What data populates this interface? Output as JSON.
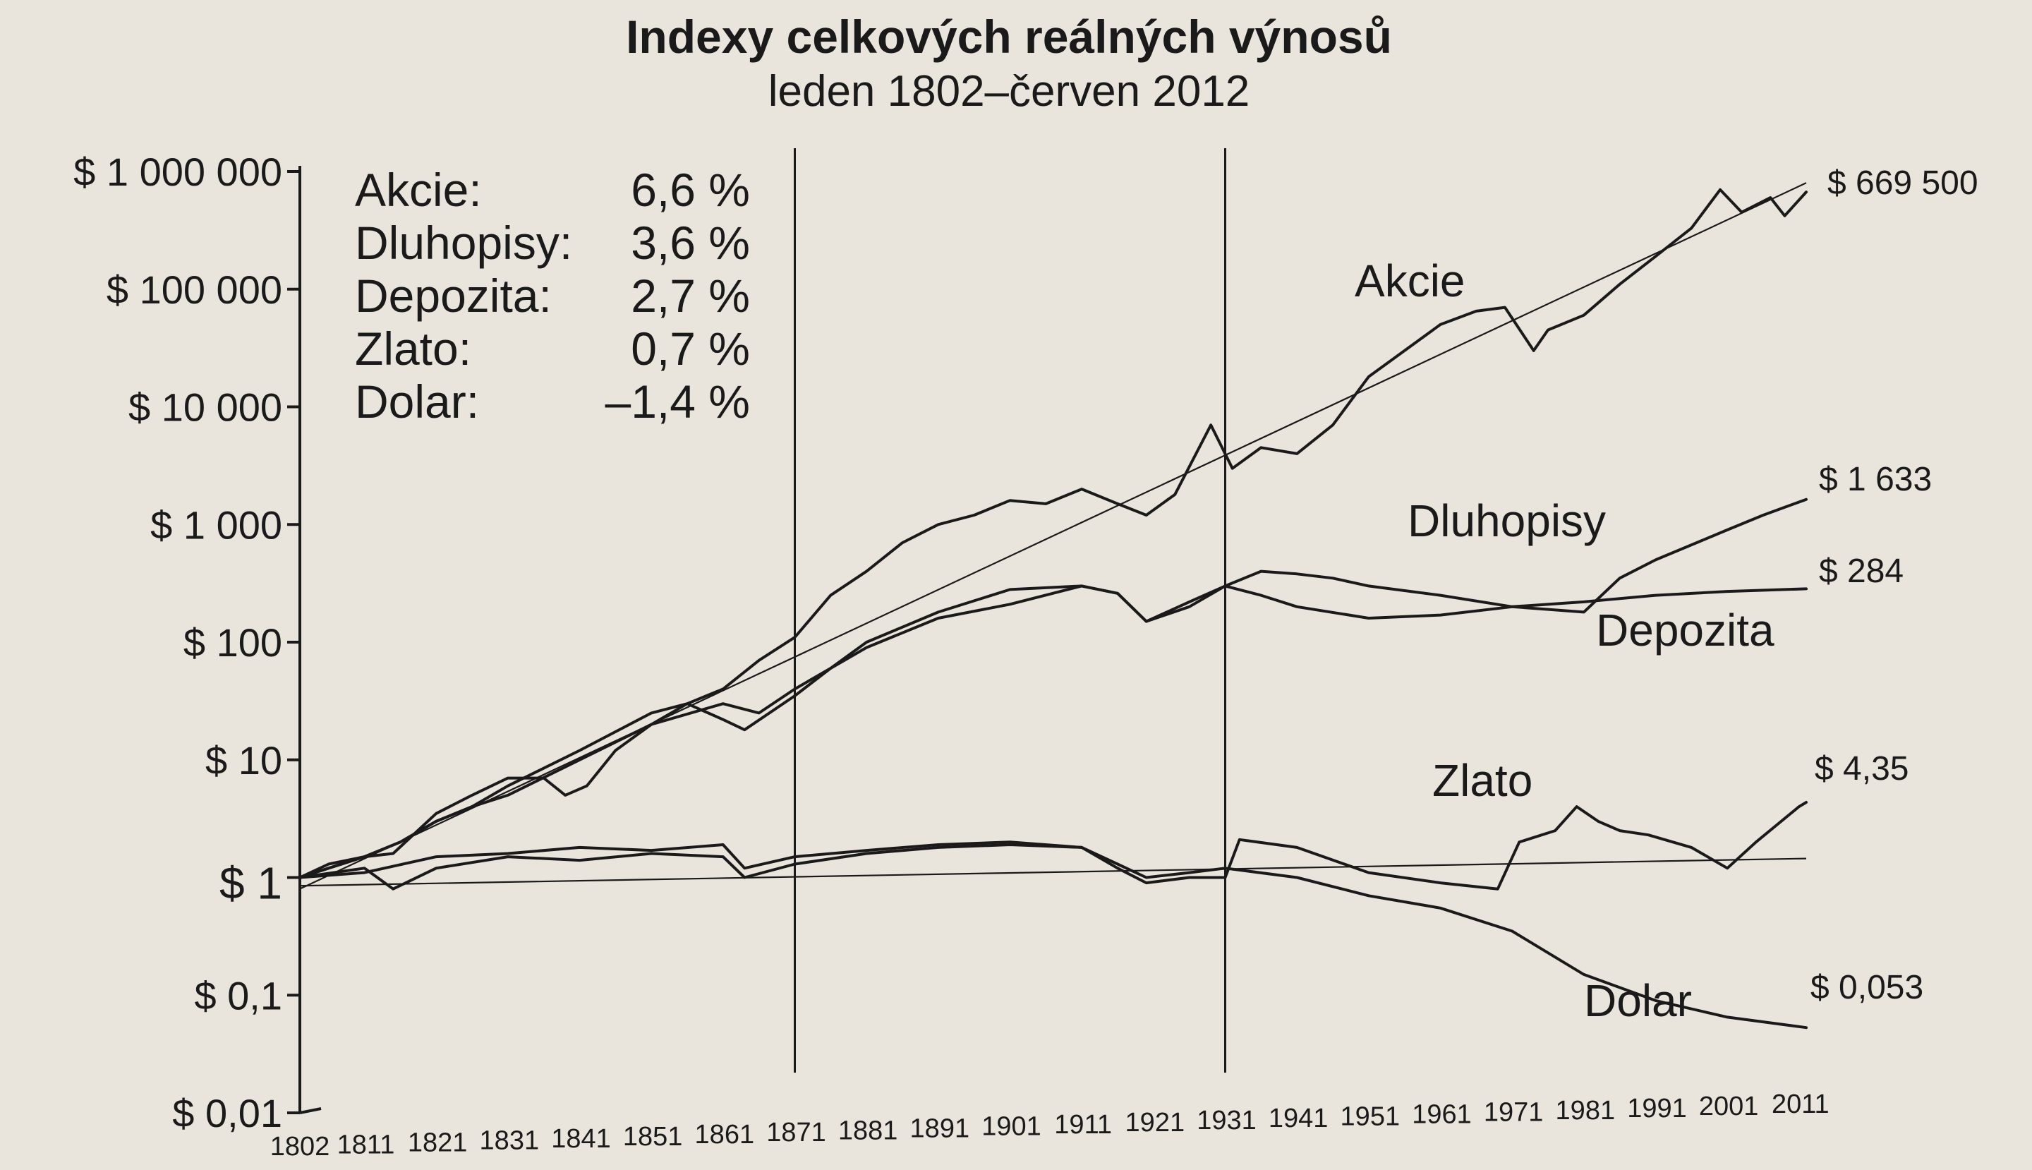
{
  "chart_data": {
    "type": "line",
    "title": "Indexy celkových reálných výnosů",
    "subtitle": "leden 1802–červen 2012",
    "y_scale": "log",
    "ylim": [
      0.01,
      1000000
    ],
    "xlim": [
      1802,
      2012
    ],
    "y_ticks": [
      {
        "value": 0.01,
        "label": "$ 0,01"
      },
      {
        "value": 0.1,
        "label": "$ 0,1"
      },
      {
        "value": 1,
        "label": "$ 1"
      },
      {
        "value": 10,
        "label": "$ 10"
      },
      {
        "value": 100,
        "label": "$ 100"
      },
      {
        "value": 1000,
        "label": "$ 1 000"
      },
      {
        "value": 10000,
        "label": "$ 10 000"
      },
      {
        "value": 100000,
        "label": "$ 100 000"
      },
      {
        "value": 1000000,
        "label": "$ 1 000 000"
      }
    ],
    "x_ticks": [
      "1802",
      "1811",
      "1821",
      "1831",
      "1841",
      "1851",
      "1861",
      "1871",
      "1881",
      "1891",
      "1901",
      "1911",
      "1921",
      "1931",
      "1941",
      "1951",
      "1961",
      "1971",
      "1981",
      "1991",
      "2001",
      "2011"
    ],
    "vertical_lines": [
      1871,
      1931
    ],
    "legend": [
      {
        "name": "Akcie:",
        "value": "6,6 %"
      },
      {
        "name": "Dluhopisy:",
        "value": "3,6 %"
      },
      {
        "name": "Depozita:",
        "value": "2,7 %"
      },
      {
        "name": "Zlato:",
        "value": "0,7 %"
      },
      {
        "name": "Dolar:",
        "value": "–1,4 %"
      }
    ],
    "series": [
      {
        "name": "Akcie",
        "end_label": "$ 669 500",
        "x": [
          1802,
          1806,
          1811,
          1815,
          1821,
          1826,
          1831,
          1836,
          1839,
          1842,
          1846,
          1851,
          1856,
          1861,
          1866,
          1871,
          1876,
          1881,
          1886,
          1891,
          1896,
          1901,
          1906,
          1911,
          1916,
          1920,
          1924,
          1929,
          1932,
          1936,
          1941,
          1946,
          1951,
          1956,
          1961,
          1966,
          1970,
          1974,
          1976,
          1981,
          1986,
          1991,
          1996,
          2000,
          2003,
          2007,
          2009,
          2012
        ],
        "values": [
          1,
          1.2,
          1.5,
          1.6,
          3.5,
          5,
          7,
          7,
          5,
          6,
          12,
          20,
          30,
          40,
          70,
          110,
          250,
          400,
          700,
          1000,
          1200,
          1600,
          1500,
          2000,
          1500,
          1200,
          1800,
          7000,
          3000,
          4500,
          4000,
          7000,
          18000,
          30000,
          50000,
          65000,
          70000,
          30000,
          45000,
          60000,
          110000,
          190000,
          330000,
          700000,
          450000,
          600000,
          420000,
          669500
        ]
      },
      {
        "name": "Dluhopisy",
        "end_label": "$ 1 633",
        "x": [
          1802,
          1806,
          1811,
          1816,
          1821,
          1826,
          1831,
          1841,
          1851,
          1856,
          1861,
          1864,
          1871,
          1876,
          1881,
          1891,
          1901,
          1911,
          1916,
          1920,
          1926,
          1931,
          1936,
          1941,
          1946,
          1951,
          1961,
          1971,
          1981,
          1986,
          1991,
          2001,
          2006,
          2012
        ],
        "values": [
          1,
          1.3,
          1.5,
          2,
          3,
          4,
          6,
          12,
          25,
          30,
          22,
          18,
          35,
          60,
          100,
          180,
          280,
          300,
          260,
          150,
          220,
          300,
          400,
          380,
          350,
          300,
          250,
          200,
          180,
          350,
          500,
          900,
          1200,
          1633
        ]
      },
      {
        "name": "Depozita",
        "end_label": "$ 284",
        "x": [
          1802,
          1806,
          1811,
          1816,
          1821,
          1826,
          1831,
          1841,
          1851,
          1861,
          1866,
          1871,
          1881,
          1891,
          1901,
          1911,
          1916,
          1920,
          1926,
          1931,
          1936,
          1941,
          1951,
          1961,
          1971,
          1981,
          1991,
          2001,
          2012
        ],
        "values": [
          1,
          1.2,
          1.5,
          2,
          3,
          4,
          5,
          10,
          20,
          30,
          25,
          40,
          90,
          160,
          210,
          300,
          260,
          150,
          200,
          300,
          250,
          200,
          160,
          170,
          200,
          220,
          250,
          270,
          284
        ]
      },
      {
        "name": "Zlato",
        "end_label": "$ 4,35",
        "x": [
          1802,
          1811,
          1815,
          1821,
          1831,
          1841,
          1851,
          1861,
          1864,
          1871,
          1881,
          1891,
          1901,
          1911,
          1916,
          1920,
          1926,
          1931,
          1933,
          1941,
          1951,
          1961,
          1969,
          1972,
          1977,
          1980,
          1983,
          1986,
          1990,
          1996,
          2001,
          2005,
          2011,
          2012
        ],
        "values": [
          1,
          1.2,
          0.8,
          1.2,
          1.5,
          1.4,
          1.6,
          1.5,
          1,
          1.3,
          1.6,
          1.8,
          1.9,
          1.8,
          1.2,
          0.9,
          1,
          1,
          2.1,
          1.8,
          1.1,
          0.9,
          0.8,
          2,
          2.5,
          4,
          3,
          2.5,
          2.3,
          1.8,
          1.2,
          2,
          4,
          4.35
        ]
      },
      {
        "name": "Dolar",
        "end_label": "$ 0,053",
        "x": [
          1802,
          1811,
          1821,
          1831,
          1841,
          1851,
          1861,
          1864,
          1871,
          1881,
          1891,
          1901,
          1911,
          1916,
          1920,
          1926,
          1931,
          1941,
          1951,
          1961,
          1971,
          1981,
          1991,
          2001,
          2012
        ],
        "values": [
          1,
          1.1,
          1.5,
          1.6,
          1.8,
          1.7,
          1.9,
          1.2,
          1.5,
          1.7,
          1.9,
          2,
          1.8,
          1.3,
          1,
          1.1,
          1.2,
          1,
          0.7,
          0.55,
          0.35,
          0.15,
          0.09,
          0.065,
          0.053
        ]
      }
    ]
  }
}
